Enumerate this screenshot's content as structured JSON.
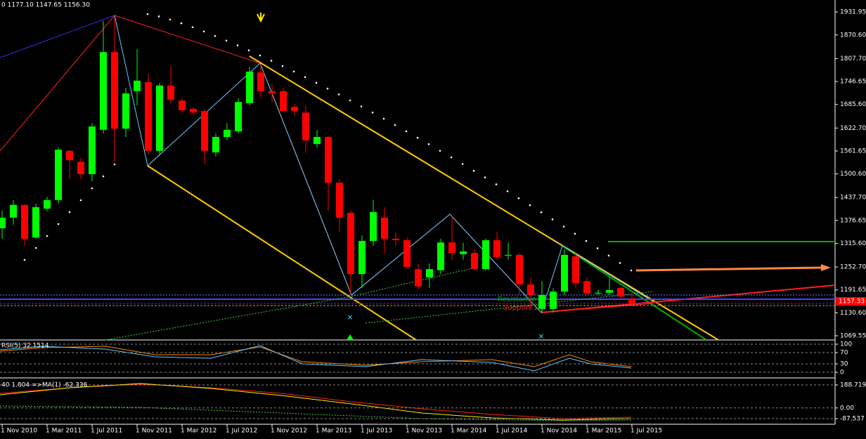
{
  "chart_data": {
    "type": "candlestick",
    "title": "0 1177.10 1147.65 1156.30",
    "up_color": "#00ff00",
    "down_color": "#ff0000",
    "categories": [
      "1 Nov 2010",
      null,
      null,
      null,
      "1 Mar 2011",
      null,
      null,
      null,
      "1 Jul 2011",
      null,
      null,
      null,
      "1 Nov 2011",
      null,
      null,
      null,
      "1 Mar 2012",
      null,
      null,
      null,
      "1 Jul 2012",
      null,
      null,
      null,
      "1 Nov 2012",
      null,
      null,
      null,
      "1 Mar 2013",
      null,
      null,
      null,
      "1 Jul 2013",
      null,
      null,
      null,
      "1 Nov 2013",
      null,
      null,
      null,
      "1 Mar 2014",
      null,
      null,
      null,
      "1 Jul 2014",
      null,
      null,
      null,
      "1 Nov 2014",
      null,
      null,
      null,
      "1 Mar 2015",
      null,
      null,
      null,
      "1 Jul 2015"
    ],
    "open": [
      1356,
      1384,
      1418,
      1331,
      1408,
      1431,
      1562,
      1533,
      1500,
      1618,
      1825,
      1621,
      1721,
      1745,
      1562,
      1736,
      1696,
      1674,
      1668,
      1558,
      1599,
      1614,
      1689,
      1771,
      1721,
      1721,
      1679,
      1664,
      1580,
      1599,
      1477,
      1397,
      1234,
      1322,
      1384,
      1328,
      1324,
      1247,
      1225,
      1244,
      1318,
      1287,
      1290,
      1247,
      1324,
      1283,
      1285,
      1206,
      1141,
      1141,
      1187,
      1281,
      1215,
      1182,
      1184,
      1197,
      1169
    ],
    "high": [
      1403,
      1431,
      1421,
      1421,
      1440,
      1571,
      1565,
      1543,
      1636,
      1908,
      1917,
      1730,
      1833,
      1767,
      1743,
      1786,
      1702,
      1679,
      1674,
      1608,
      1636,
      1702,
      1786,
      1792,
      1739,
      1730,
      1687,
      1683,
      1618,
      1603,
      1487,
      1403,
      1337,
      1431,
      1412,
      1346,
      1331,
      1262,
      1262,
      1328,
      1388,
      1318,
      1300,
      1328,
      1346,
      1318,
      1290,
      1225,
      1215,
      1197,
      1300,
      1290,
      1225,
      1193,
      1225,
      1201,
      1177.1
    ],
    "low": [
      1328,
      1365,
      1309,
      1328,
      1403,
      1421,
      1487,
      1487,
      1481,
      1608,
      1533,
      1599,
      1683,
      1552,
      1548,
      1687,
      1664,
      1659,
      1528,
      1547,
      1590,
      1608,
      1683,
      1702,
      1692,
      1664,
      1655,
      1556,
      1571,
      1403,
      1346,
      1182,
      1197,
      1309,
      1290,
      1309,
      1249,
      1193,
      1197,
      1234,
      1272,
      1272,
      1244,
      1244,
      1272,
      1272,
      1178,
      1141,
      1131,
      1131,
      1178,
      1197,
      1178,
      1178,
      1178,
      1169,
      1147.65
    ],
    "close": [
      1384,
      1418,
      1328,
      1412,
      1431,
      1565,
      1537,
      1500,
      1627,
      1825,
      1621,
      1715,
      1749,
      1562,
      1736,
      1698,
      1670,
      1664,
      1562,
      1599,
      1618,
      1692,
      1773,
      1721,
      1715,
      1668,
      1668,
      1590,
      1599,
      1477,
      1384,
      1234,
      1322,
      1399,
      1328,
      1324,
      1253,
      1201,
      1247,
      1318,
      1290,
      1294,
      1247,
      1324,
      1279,
      1285,
      1206,
      1178,
      1178,
      1187,
      1285,
      1210,
      1182,
      1184,
      1191,
      1174,
      1156.3
    ],
    "ylim": [
      1069.55,
      1931.95
    ],
    "yticks": [
      1931.95,
      {
        "value": 1870.6,
        "label": "1870.60"
      },
      {
        "value": 1807.7,
        "label": "1807.70"
      },
      1746.65,
      {
        "value": 1685.6,
        "label": "1685.60"
      },
      {
        "value": 1622.7,
        "label": "1622.70"
      },
      1561.65,
      {
        "value": 1500.6,
        "label": "1500.60"
      },
      {
        "value": 1437.7,
        "label": "1437.70"
      },
      1376.65,
      {
        "value": 1315.6,
        "label": "1315.60"
      },
      {
        "value": 1252.7,
        "label": "1252.70"
      },
      1191.65,
      {
        "value": 1130.6,
        "label": "1130.60"
      },
      1069.55
    ],
    "annotations": [
      "Resistance 1",
      "Support 1",
      "1157.33"
    ]
  },
  "indicators": {
    "rsi": {
      "label": "RSI(5) 32.1514",
      "ylim": [
        0,
        100
      ],
      "yticks": [
        100,
        70,
        30,
        0
      ]
    },
    "osc": {
      "label": "40 1.804 =>MA(1) -62.336",
      "ylim": [
        -87.537,
        188.719
      ],
      "yticks": [
        188.719,
        {
          "value": 0,
          "label": "0.00"
        },
        -87.537
      ]
    }
  }
}
